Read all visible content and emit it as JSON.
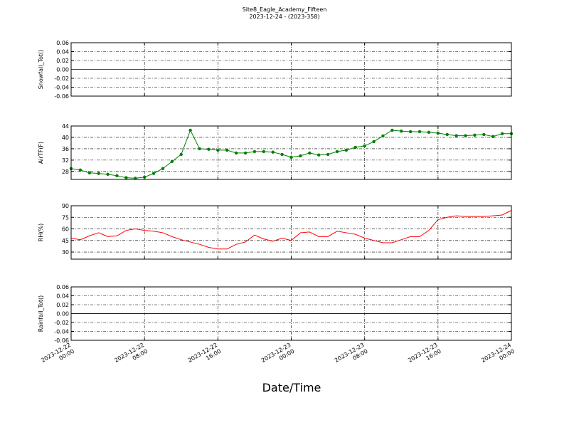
{
  "chart_data": [
    {
      "type": "line",
      "title": "Site8_Eagle_Academy_Fifteen",
      "subtitle": "2023-12-24 - (2023-358)",
      "ylabel": "Snowfall_Tot()",
      "x": [
        "2023-12-22 00:00",
        "2023-12-24 00:00"
      ],
      "series": [
        {
          "name": "Snowfall_Tot()",
          "color": "#ff0000",
          "values": [
            0,
            0
          ]
        }
      ],
      "xlim": [
        "2023-12-22 00:00",
        "2023-12-24 00:00"
      ],
      "xticks": [
        "2023-12-22 00:00",
        "2023-12-22 08:00",
        "2023-12-22 16:00",
        "2023-12-23 00:00",
        "2023-12-23 08:00",
        "2023-12-23 16:00",
        "2023-12-24 00:00"
      ],
      "ylim": [
        -0.06,
        0.06
      ],
      "yticks": [
        0.06,
        0.04,
        0.02,
        {
          "value": 0,
          "label": "0.00"
        },
        -0.02,
        -0.04,
        -0.06
      ],
      "grid": true
    },
    {
      "type": "line",
      "ylabel": "AirTF(F)",
      "markers": true,
      "x": [
        "2023-12-22 00:00",
        "2023-12-22 01:00",
        "2023-12-22 02:00",
        "2023-12-22 03:00",
        "2023-12-22 04:00",
        "2023-12-22 05:00",
        "2023-12-22 06:00",
        "2023-12-22 07:00",
        "2023-12-22 08:00",
        "2023-12-22 09:00",
        "2023-12-22 10:00",
        "2023-12-22 11:00",
        "2023-12-22 12:00",
        "2023-12-22 13:00",
        "2023-12-22 14:00",
        "2023-12-22 15:00",
        "2023-12-22 16:00",
        "2023-12-22 17:00",
        "2023-12-22 18:00",
        "2023-12-22 19:00",
        "2023-12-22 20:00",
        "2023-12-22 21:00",
        "2023-12-22 22:00",
        "2023-12-22 23:00",
        "2023-12-23 00:00",
        "2023-12-23 01:00",
        "2023-12-23 02:00",
        "2023-12-23 03:00",
        "2023-12-23 04:00",
        "2023-12-23 05:00",
        "2023-12-23 06:00",
        "2023-12-23 07:00",
        "2023-12-23 08:00",
        "2023-12-23 09:00",
        "2023-12-23 10:00",
        "2023-12-23 11:00",
        "2023-12-23 12:00",
        "2023-12-23 13:00",
        "2023-12-23 14:00",
        "2023-12-23 15:00",
        "2023-12-23 16:00",
        "2023-12-23 17:00",
        "2023-12-23 18:00",
        "2023-12-23 19:00",
        "2023-12-23 20:00",
        "2023-12-23 21:00",
        "2023-12-23 22:00",
        "2023-12-23 23:00",
        "2023-12-24 00:00"
      ],
      "series": [
        {
          "name": "AirTF(F)",
          "color": "#008000",
          "values": [
            29,
            28.5,
            27.5,
            27.3,
            27,
            26.5,
            25.8,
            25.6,
            26,
            27.3,
            29,
            31.5,
            34,
            42.5,
            36,
            35.8,
            35.5,
            35.5,
            34.5,
            34.5,
            35,
            35,
            34.8,
            34,
            33,
            33.5,
            34.5,
            33.8,
            34,
            35,
            35.5,
            36.5,
            37,
            38.5,
            40.5,
            42.5,
            42.2,
            42,
            42,
            41.8,
            41.5,
            41,
            40.6,
            40.6,
            40.8,
            41,
            40.3,
            41.3,
            41.3
          ]
        }
      ],
      "xlim": [
        "2023-12-22 00:00",
        "2023-12-24 00:00"
      ],
      "xticks": [
        "2023-12-22 00:00",
        "2023-12-22 08:00",
        "2023-12-22 16:00",
        "2023-12-23 00:00",
        "2023-12-23 08:00",
        "2023-12-23 16:00",
        "2023-12-24 00:00"
      ],
      "ylim": [
        25.2,
        44
      ],
      "yticks": [
        28,
        32,
        36,
        40,
        44
      ],
      "grid": true
    },
    {
      "type": "line",
      "ylabel": "RH(%)",
      "x": [
        "2023-12-22 00:00",
        "2023-12-22 01:00",
        "2023-12-22 02:00",
        "2023-12-22 03:00",
        "2023-12-22 04:00",
        "2023-12-22 05:00",
        "2023-12-22 06:00",
        "2023-12-22 07:00",
        "2023-12-22 08:00",
        "2023-12-22 09:00",
        "2023-12-22 10:00",
        "2023-12-22 11:00",
        "2023-12-22 12:00",
        "2023-12-22 13:00",
        "2023-12-22 14:00",
        "2023-12-22 15:00",
        "2023-12-22 16:00",
        "2023-12-22 17:00",
        "2023-12-22 18:00",
        "2023-12-22 19:00",
        "2023-12-22 20:00",
        "2023-12-22 21:00",
        "2023-12-22 22:00",
        "2023-12-22 23:00",
        "2023-12-23 00:00",
        "2023-12-23 01:00",
        "2023-12-23 02:00",
        "2023-12-23 03:00",
        "2023-12-23 04:00",
        "2023-12-23 05:00",
        "2023-12-23 06:00",
        "2023-12-23 07:00",
        "2023-12-23 08:00",
        "2023-12-23 09:00",
        "2023-12-23 10:00",
        "2023-12-23 11:00",
        "2023-12-23 12:00",
        "2023-12-23 13:00",
        "2023-12-23 14:00",
        "2023-12-23 15:00",
        "2023-12-23 16:00",
        "2023-12-23 17:00",
        "2023-12-23 18:00",
        "2023-12-23 19:00",
        "2023-12-23 20:00",
        "2023-12-23 21:00",
        "2023-12-23 22:00",
        "2023-12-23 23:00",
        "2023-12-24 00:00"
      ],
      "series": [
        {
          "name": "RH(%)",
          "color": "#ff0000",
          "values": [
            48,
            46,
            51,
            55,
            50,
            51,
            58,
            60,
            58,
            57,
            55,
            50,
            46,
            43,
            40,
            36,
            34,
            34,
            40,
            43,
            52,
            47,
            44,
            48,
            45,
            55,
            56,
            50,
            50,
            57,
            55,
            53,
            48,
            45,
            42,
            42,
            46,
            50,
            50,
            58,
            72,
            75,
            77,
            76,
            76,
            76,
            77,
            78,
            84
          ]
        }
      ],
      "xlim": [
        "2023-12-22 00:00",
        "2023-12-24 00:00"
      ],
      "xticks": [
        "2023-12-22 00:00",
        "2023-12-22 08:00",
        "2023-12-22 16:00",
        "2023-12-23 00:00",
        "2023-12-23 08:00",
        "2023-12-23 16:00",
        "2023-12-24 00:00"
      ],
      "ylim": [
        20.8,
        90
      ],
      "yticks": [
        30,
        45,
        60,
        75,
        90
      ],
      "grid": true
    },
    {
      "type": "line",
      "ylabel": "Rainfall_Tot()",
      "xlabel": "Date/Time",
      "x": [
        "2023-12-22 00:00",
        "2023-12-24 00:00"
      ],
      "series": [
        {
          "name": "Rainfall_Tot()",
          "color": "#0000ff",
          "values": [
            0,
            0
          ]
        }
      ],
      "xlim": [
        "2023-12-22 00:00",
        "2023-12-24 00:00"
      ],
      "xticks": [
        "2023-12-22 00:00",
        "2023-12-22 08:00",
        "2023-12-22 16:00",
        "2023-12-23 00:00",
        "2023-12-23 08:00",
        "2023-12-23 16:00",
        "2023-12-24 00:00"
      ],
      "ylim": [
        -0.06,
        0.06
      ],
      "yticks": [
        0.06,
        0.04,
        0.02,
        {
          "value": 0,
          "label": "0.00"
        },
        -0.02,
        -0.04,
        -0.06
      ],
      "grid": true,
      "show_xticklabels": true
    }
  ]
}
